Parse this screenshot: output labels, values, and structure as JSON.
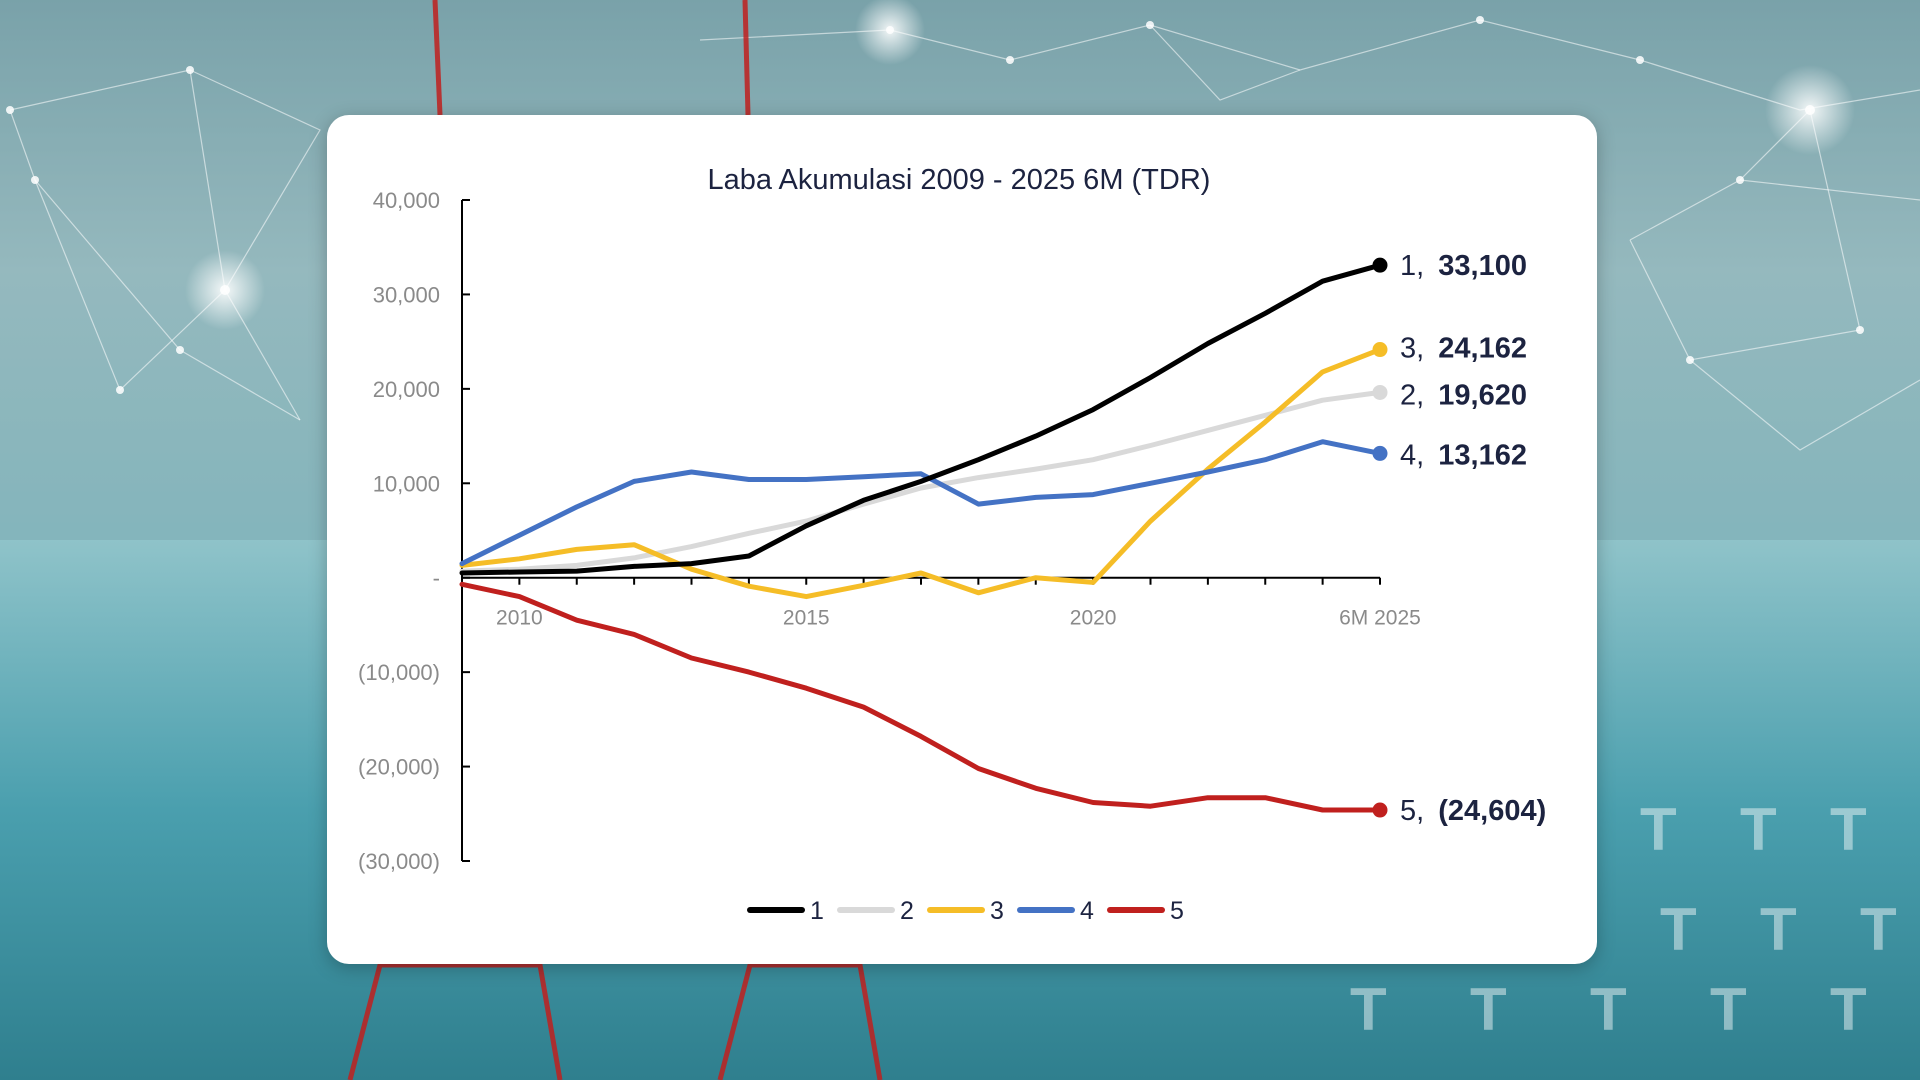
{
  "chart_data": {
    "type": "line",
    "title": "Laba Akumulasi 2009 - 2025 6M (TDR)",
    "xlabel": "",
    "ylabel": "",
    "x": [
      "2009",
      "2010",
      "2011",
      "2012",
      "2013",
      "2014",
      "2015",
      "2016",
      "2017",
      "2018",
      "2019",
      "2020",
      "2021",
      "2022",
      "2023",
      "2024",
      "6M 2025"
    ],
    "xtick_labels": [
      {
        "index": 1,
        "label": "2010"
      },
      {
        "index": 6,
        "label": "2015"
      },
      {
        "index": 11,
        "label": "2020"
      },
      {
        "index": 16,
        "label": "6M 2025"
      }
    ],
    "ylim": [
      -30000,
      40000
    ],
    "yticks": [
      {
        "value": 40000,
        "label": "40,000"
      },
      {
        "value": 30000,
        "label": "30,000"
      },
      {
        "value": 20000,
        "label": "20,000"
      },
      {
        "value": 10000,
        "label": "10,000"
      },
      {
        "value": 0,
        "label": "-"
      },
      {
        "value": -10000,
        "label": "(10,000)"
      },
      {
        "value": -20000,
        "label": "(20,000)"
      },
      {
        "value": -30000,
        "label": "(30,000)"
      }
    ],
    "series": [
      {
        "name": "1",
        "color": "#000000",
        "end_label": "1,",
        "end_value": "33,100",
        "values": [
          500,
          600,
          700,
          1200,
          1500,
          2300,
          5500,
          8200,
          10200,
          12500,
          15000,
          17800,
          21200,
          24800,
          28000,
          31400,
          33100
        ]
      },
      {
        "name": "2",
        "color": "#d9d9d9",
        "end_label": "2,",
        "end_value": "19,620",
        "values": [
          700,
          900,
          1300,
          2100,
          3300,
          4700,
          6000,
          7800,
          9500,
          10600,
          11500,
          12500,
          14000,
          15600,
          17200,
          18800,
          19620
        ]
      },
      {
        "name": "3",
        "color": "#f5bd27",
        "end_label": "3,",
        "end_value": "24,162",
        "values": [
          1300,
          2000,
          3000,
          3500,
          900,
          -900,
          -2000,
          -800,
          500,
          -1600,
          0,
          -500,
          6000,
          11500,
          16500,
          21800,
          24162
        ]
      },
      {
        "name": "4",
        "color": "#4472c4",
        "end_label": "4,",
        "end_value": "13,162",
        "values": [
          1500,
          4500,
          7500,
          10200,
          11200,
          10400,
          10400,
          10700,
          11000,
          7800,
          8500,
          8800,
          10000,
          11200,
          12500,
          14400,
          13162
        ]
      },
      {
        "name": "5",
        "color": "#c0201e",
        "end_label": "5,",
        "end_value": "(24,604)",
        "values": [
          -700,
          -2000,
          -4500,
          -6000,
          -8500,
          -10000,
          -11700,
          -13700,
          -16800,
          -20200,
          -22300,
          -23800,
          -24200,
          -23300,
          -23300,
          -24600,
          -24604
        ]
      }
    ],
    "legend": {
      "position": "bottom"
    },
    "grid": false
  }
}
